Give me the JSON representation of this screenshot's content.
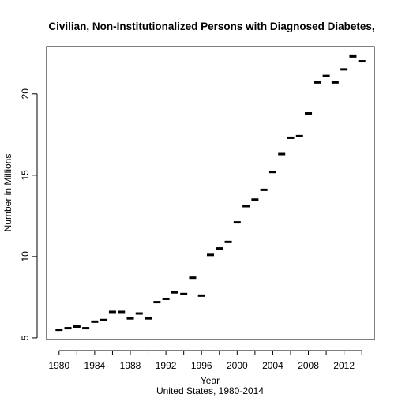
{
  "chart_data": {
    "type": "scatter",
    "title": "Civilian, Non-Institutionalized Persons with Diagnosed Diabetes,",
    "xlabel": "Year",
    "xlabel2": "United States, 1980-2014",
    "ylabel": "Number in Millions",
    "xlim": [
      1978.6,
      2015.4
    ],
    "ylim": [
      4.9,
      22.9
    ],
    "x_ticks": [
      1980,
      1984,
      1988,
      1992,
      1996,
      2000,
      2004,
      2008,
      2012
    ],
    "x_tick_labels": [
      "1980",
      "1984",
      "1988",
      "1992",
      "1996",
      "2000",
      "2004",
      "2008",
      "2012"
    ],
    "y_ticks": [
      5,
      10,
      15,
      20
    ],
    "y_tick_labels": [
      "5",
      "10",
      "15",
      "20"
    ],
    "marker": "dash",
    "grid": false,
    "x": [
      1980,
      1981,
      1982,
      1983,
      1984,
      1985,
      1986,
      1987,
      1988,
      1989,
      1990,
      1991,
      1992,
      1993,
      1994,
      1995,
      1996,
      1997,
      1998,
      1999,
      2000,
      2001,
      2002,
      2003,
      2004,
      2005,
      2006,
      2007,
      2008,
      2009,
      2010,
      2011,
      2012,
      2013,
      2014
    ],
    "y": [
      5.5,
      5.6,
      5.7,
      5.6,
      6.0,
      6.1,
      6.6,
      6.6,
      6.2,
      6.5,
      6.2,
      7.2,
      7.4,
      7.8,
      7.7,
      8.7,
      7.6,
      10.1,
      10.5,
      10.9,
      12.1,
      13.1,
      13.5,
      14.1,
      15.2,
      16.3,
      17.3,
      17.4,
      18.8,
      20.7,
      21.1,
      20.7,
      21.5,
      22.3,
      22.0
    ]
  }
}
